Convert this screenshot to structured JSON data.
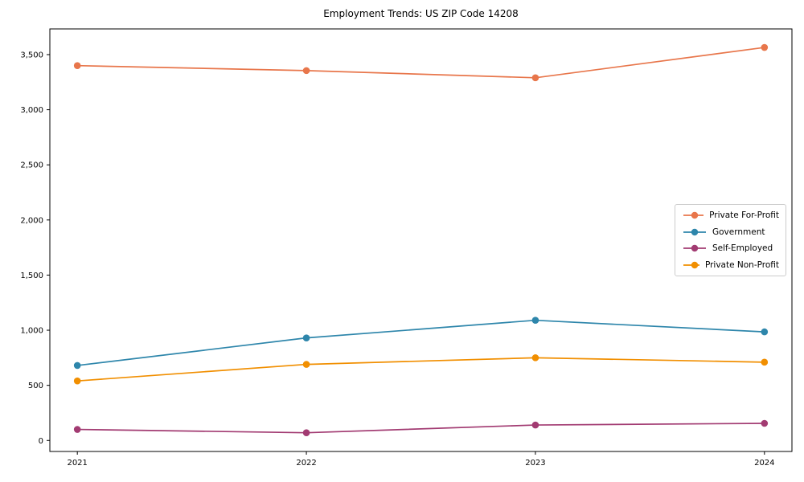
{
  "window": {
    "title": "Employment Trends: US ZIP Code 14208"
  },
  "chart_data": {
    "type": "line",
    "title": "Employment Trends: US ZIP Code 14208",
    "xlabel": "",
    "ylabel": "",
    "x": [
      2021,
      2022,
      2023,
      2024
    ],
    "categories": [
      "2021",
      "2022",
      "2023",
      "2024"
    ],
    "series": [
      {
        "name": "Private For-Profit",
        "color": "#E8764B",
        "values": [
          3400,
          3355,
          3290,
          3565
        ]
      },
      {
        "name": "Government",
        "color": "#2E86AB",
        "values": [
          680,
          930,
          1090,
          985
        ]
      },
      {
        "name": "Self-Employed",
        "color": "#A23B72",
        "values": [
          100,
          70,
          140,
          155
        ]
      },
      {
        "name": "Private Non-Profit",
        "color": "#F18F01",
        "values": [
          540,
          690,
          750,
          710
        ]
      }
    ],
    "yticks": [
      0,
      500,
      1000,
      1500,
      2000,
      2500,
      3000,
      3500
    ],
    "ytick_labels": [
      "0",
      "500",
      "1,000",
      "1,500",
      "2,000",
      "2,500",
      "3,000",
      "3,500"
    ],
    "ylim": [
      -100,
      3733
    ],
    "xlim": [
      2020.88,
      2024.12
    ],
    "grid": false,
    "legend_position": "center right",
    "marker": "o",
    "axis_color": "#000000"
  }
}
